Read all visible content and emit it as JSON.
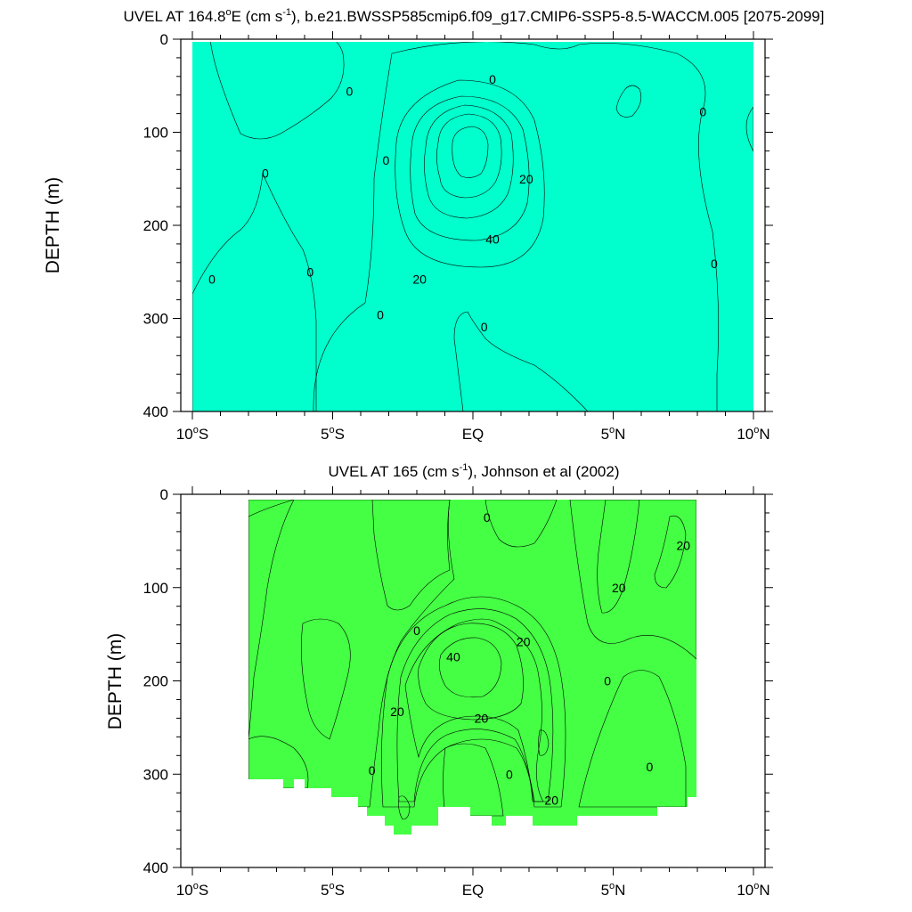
{
  "colors": {
    "teal": "#00ffcc",
    "cyan": "#00ffff",
    "green_light": "#44ff44",
    "green": "#5aff00",
    "lime": "#9cff00",
    "yellow": "#ffff00",
    "yellow_orange": "#ffd530",
    "orange_light": "#ffb040",
    "orange": "#ff9830"
  },
  "chart_data": [
    {
      "type": "contour",
      "title_pre": "UVEL AT 164.8",
      "title_sup1": "o",
      "title_mid": "E (cm s",
      "title_sup2": "-1",
      "title_post": "), b.e21.BWSSP585cmip6.f09_g17.CMIP6-SSP5-8.5-WACCM.005 [2075-2099]",
      "ylabel": "DEPTH (m)",
      "xlim": [
        -10,
        10
      ],
      "ylim": [
        400,
        0
      ],
      "x_ticks": [
        {
          "v": -10,
          "n": "10",
          "s": "S"
        },
        {
          "v": -5,
          "n": "5",
          "s": "S"
        },
        {
          "v": 0,
          "n": "EQ",
          "s": ""
        },
        {
          "v": 5,
          "n": "5",
          "s": "N"
        },
        {
          "v": 10,
          "n": "10",
          "s": "N"
        }
      ],
      "y_ticks": [
        0,
        100,
        200,
        300,
        400
      ],
      "contour_labels": [
        {
          "text": "0",
          "x": -4.4,
          "y": 56
        },
        {
          "text": "0",
          "x": 0.7,
          "y": 43
        },
        {
          "text": "0",
          "x": 8.2,
          "y": 78
        },
        {
          "text": "0",
          "x": -3.1,
          "y": 130
        },
        {
          "text": "0",
          "x": -7.4,
          "y": 144
        },
        {
          "text": "20",
          "x": 1.9,
          "y": 150
        },
        {
          "text": "40",
          "x": 0.7,
          "y": 215
        },
        {
          "text": "20",
          "x": -1.9,
          "y": 258
        },
        {
          "text": "0",
          "x": 8.6,
          "y": 241
        },
        {
          "text": "0",
          "x": -5.8,
          "y": 250
        },
        {
          "text": "0",
          "x": -9.3,
          "y": 258
        },
        {
          "text": "0",
          "x": -3.3,
          "y": 296
        },
        {
          "text": "0",
          "x": 0.4,
          "y": 309
        }
      ]
    },
    {
      "type": "contour",
      "title_pre": "UVEL AT 165 (cm s",
      "title_sup2": "-1",
      "title_post": "), Johnson et al (2002)",
      "ylabel": "DEPTH (m)",
      "xlim": [
        -10,
        10
      ],
      "ylim": [
        400,
        0
      ],
      "x_ticks": [
        {
          "v": -10,
          "n": "10",
          "s": "S"
        },
        {
          "v": -5,
          "n": "5",
          "s": "S"
        },
        {
          "v": 0,
          "n": "EQ",
          "s": ""
        },
        {
          "v": 5,
          "n": "5",
          "s": "N"
        },
        {
          "v": 10,
          "n": "10",
          "s": "N"
        }
      ],
      "y_ticks": [
        0,
        100,
        200,
        300,
        400
      ],
      "contour_labels": [
        {
          "text": "0",
          "x": 0.5,
          "y": 25
        },
        {
          "text": "20",
          "x": 7.5,
          "y": 55
        },
        {
          "text": "20",
          "x": 5.2,
          "y": 100
        },
        {
          "text": "0",
          "x": -2.0,
          "y": 146
        },
        {
          "text": "20",
          "x": 1.8,
          "y": 158
        },
        {
          "text": "40",
          "x": -0.7,
          "y": 174
        },
        {
          "text": "0",
          "x": 4.8,
          "y": 200
        },
        {
          "text": "20",
          "x": -2.7,
          "y": 233
        },
        {
          "text": "20",
          "x": 0.3,
          "y": 240
        },
        {
          "text": "0",
          "x": -3.6,
          "y": 296
        },
        {
          "text": "0",
          "x": 1.3,
          "y": 300
        },
        {
          "text": "0",
          "x": 6.3,
          "y": 292
        },
        {
          "text": "20",
          "x": 2.8,
          "y": 328
        }
      ]
    }
  ]
}
